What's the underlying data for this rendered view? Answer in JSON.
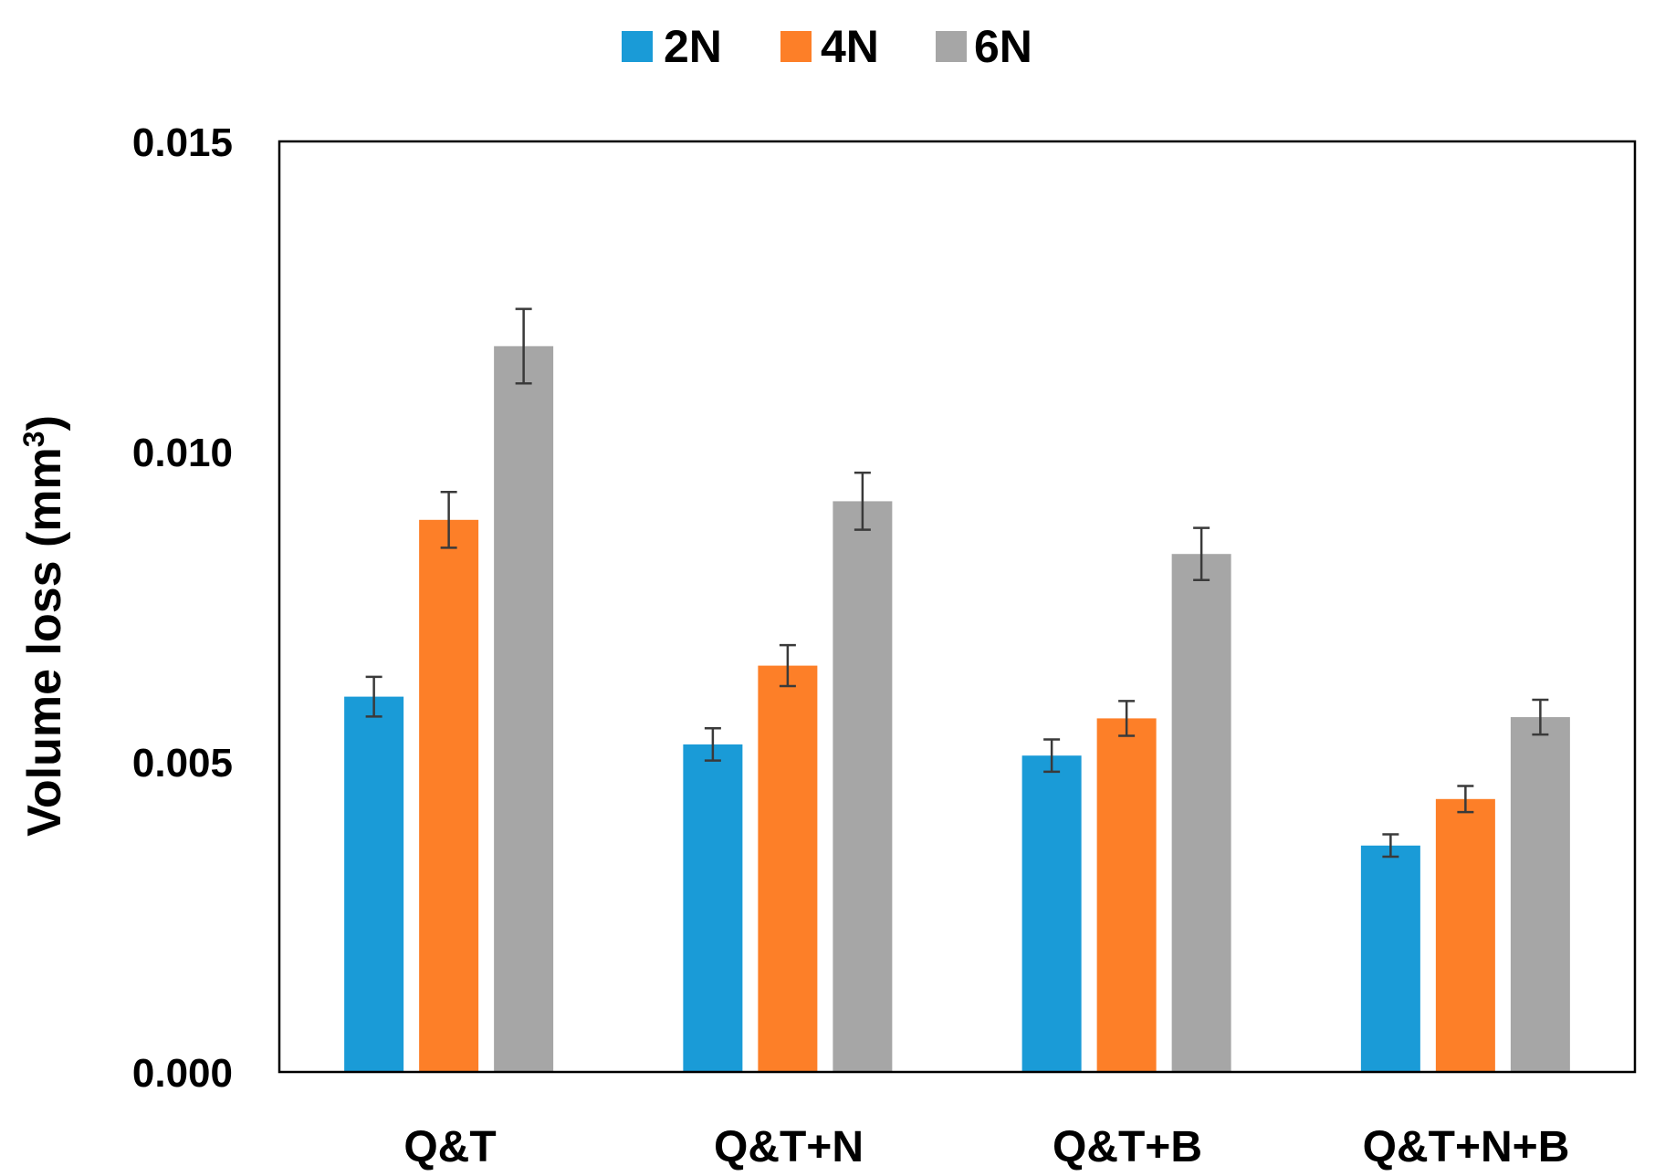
{
  "chart_data": {
    "type": "bar",
    "title": "",
    "xlabel": "",
    "ylabel": "Volume loss (mm³)",
    "ylabel_parts": {
      "base": "Volume loss (mm",
      "sup": "3",
      "close": ")"
    },
    "ylim": [
      0,
      0.015
    ],
    "yticks": [
      0,
      0.005,
      0.01,
      0.015
    ],
    "ytick_labels": [
      "0.000",
      "0.005",
      "0.010",
      "0.015"
    ],
    "grid": false,
    "legend_position": "top-center",
    "categories": [
      "Q&T",
      "Q&T+N",
      "Q&T+B",
      "Q&T+N+B"
    ],
    "series": [
      {
        "name": "2N",
        "color": "#1a9bd7",
        "values": [
          0.00605,
          0.00528,
          0.0051,
          0.00365
        ],
        "errors": [
          0.00032,
          0.00026,
          0.00026,
          0.00018
        ]
      },
      {
        "name": "4N",
        "color": "#fd7f28",
        "values": [
          0.0089,
          0.00655,
          0.0057,
          0.0044
        ],
        "errors": [
          0.00045,
          0.00033,
          0.00028,
          0.00021
        ]
      },
      {
        "name": "6N",
        "color": "#a6a6a6",
        "values": [
          0.0117,
          0.0092,
          0.00835,
          0.00572
        ],
        "errors": [
          0.0006,
          0.00046,
          0.00042,
          0.00028
        ]
      }
    ]
  }
}
